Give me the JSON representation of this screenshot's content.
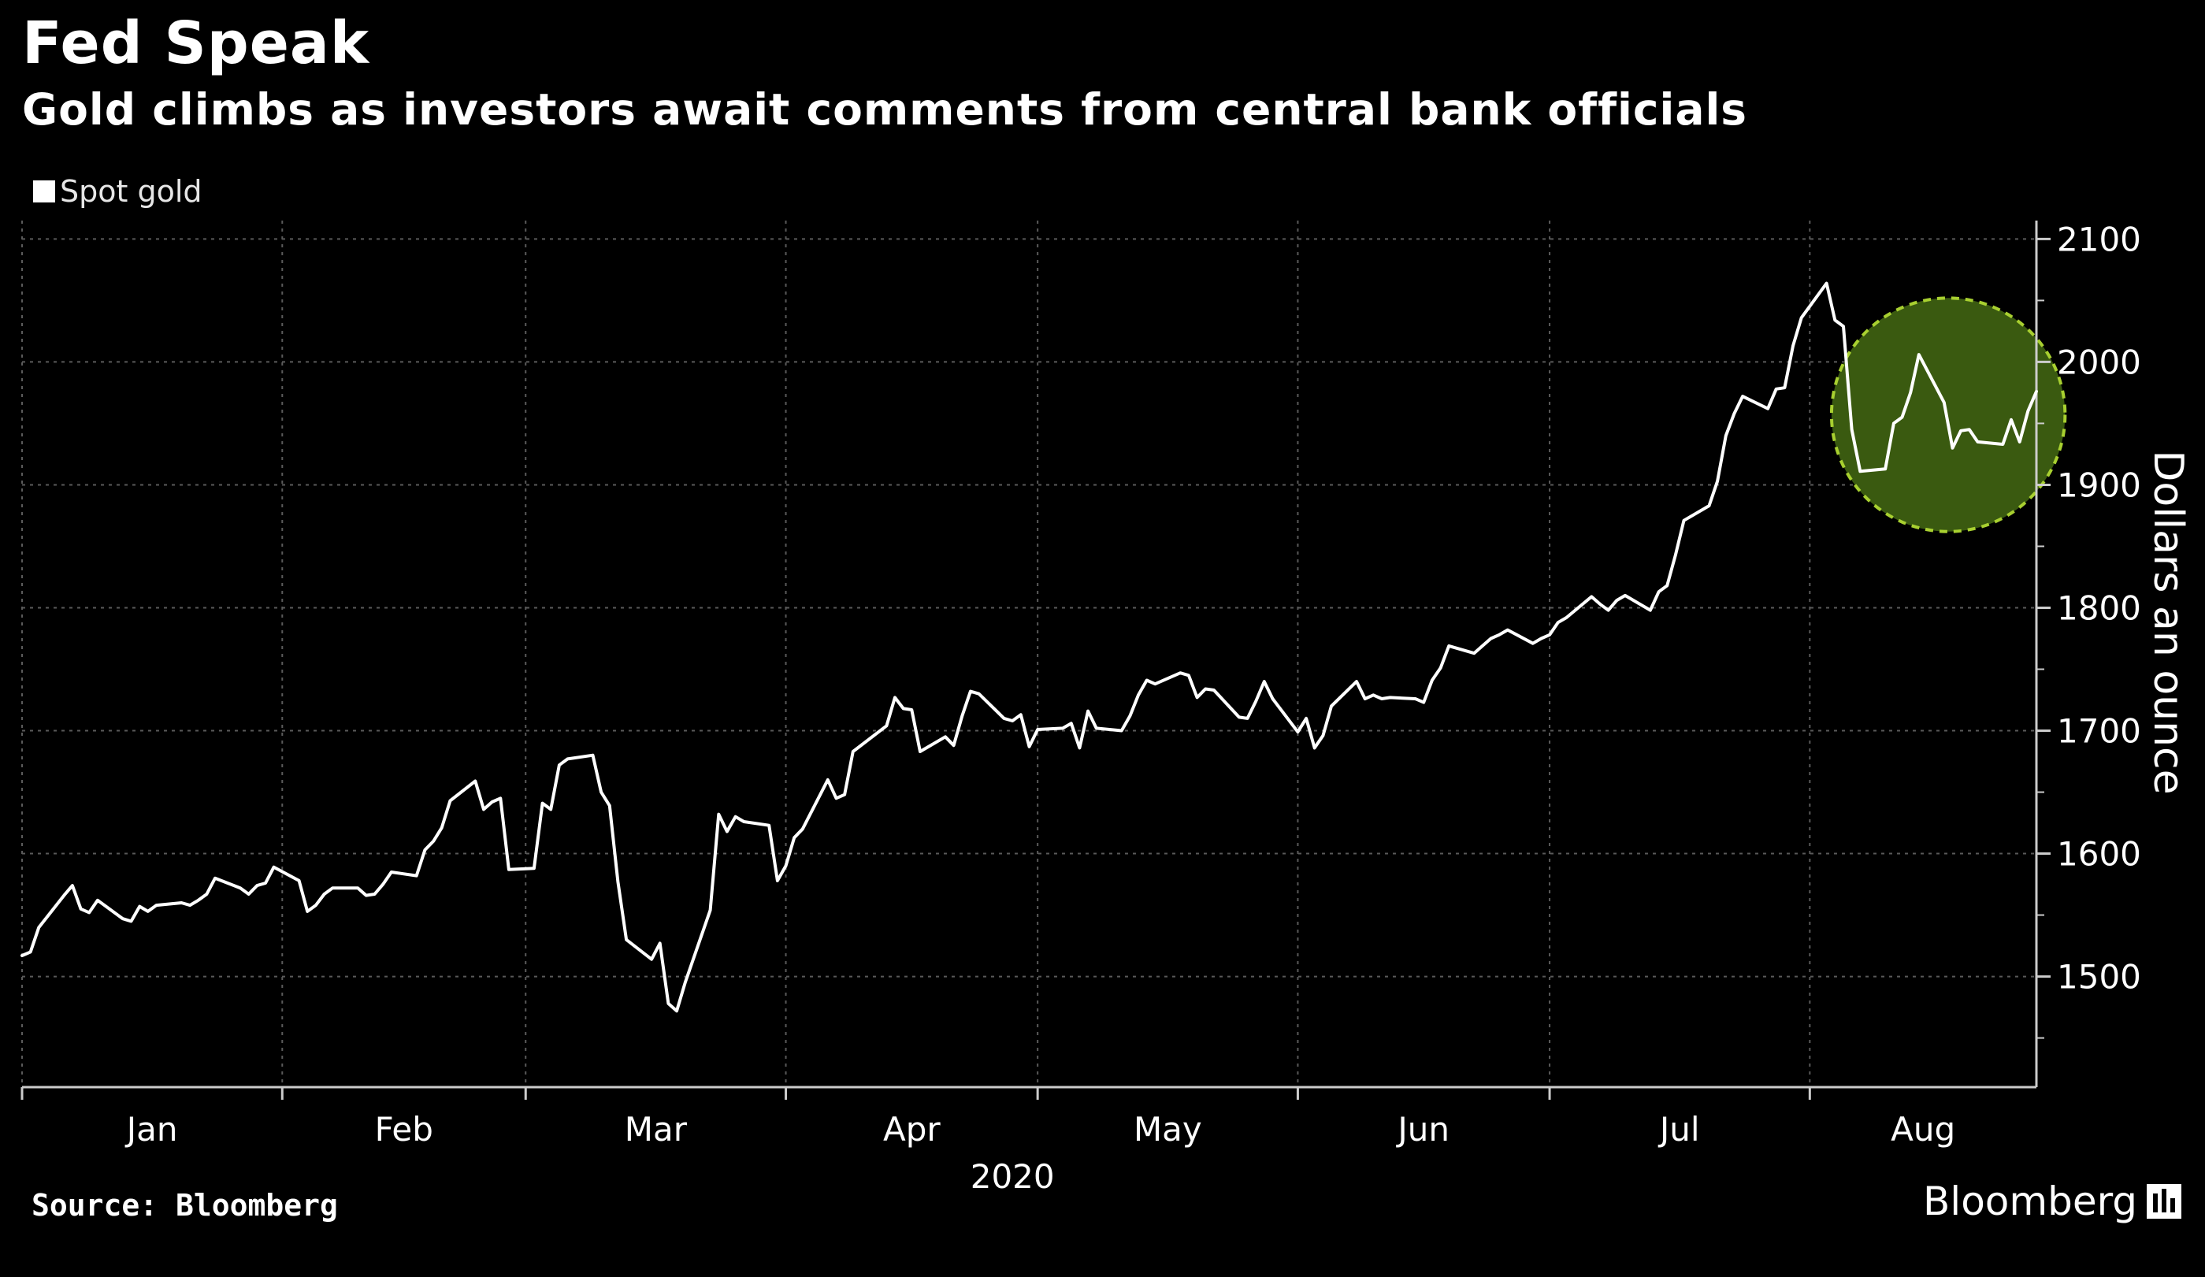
{
  "header": {
    "title": "Fed Speak",
    "subtitle": "Gold climbs as investors await comments from central bank officials"
  },
  "footer": {
    "source": "Source: Bloomberg",
    "brand": "Bloomberg"
  },
  "colors": {
    "background": "#000000",
    "line": "#ffffff",
    "grid": "#5a5a5a",
    "highlight_fill": "#3a5a10",
    "highlight_stroke": "#a8d030"
  },
  "chart_data": {
    "type": "line",
    "legend": [
      "Spot gold"
    ],
    "legend_position": "top-left",
    "ylabel": "Dollars an ounce",
    "xlabel": "2020",
    "ylim": [
      1410,
      2115
    ],
    "y_ticks": [
      1500,
      1600,
      1700,
      1800,
      1900,
      2000,
      2100
    ],
    "y_axis_side": "right",
    "x_range": [
      "2020-01-01",
      "2020-08-28"
    ],
    "x_ticks": [
      "Jan",
      "Feb",
      "Mar",
      "Apr",
      "May",
      "Jun",
      "Jul",
      "Aug"
    ],
    "month_boundaries": [
      "2020-02-01",
      "2020-03-01",
      "2020-04-01",
      "2020-05-01",
      "2020-06-01",
      "2020-07-01",
      "2020-08-01"
    ],
    "grid": true,
    "highlight": {
      "shape": "circle",
      "style": "dashed",
      "x_from": "2020-08-07",
      "x_to": "2020-08-28",
      "y_from": 1862,
      "y_to": 2052
    },
    "series": [
      {
        "name": "Spot gold",
        "x": [
          "2020-01-01",
          "2020-01-02",
          "2020-01-03",
          "2020-01-06",
          "2020-01-07",
          "2020-01-08",
          "2020-01-09",
          "2020-01-10",
          "2020-01-13",
          "2020-01-14",
          "2020-01-15",
          "2020-01-16",
          "2020-01-17",
          "2020-01-20",
          "2020-01-21",
          "2020-01-22",
          "2020-01-23",
          "2020-01-24",
          "2020-01-27",
          "2020-01-28",
          "2020-01-29",
          "2020-01-30",
          "2020-01-31",
          "2020-02-03",
          "2020-02-04",
          "2020-02-05",
          "2020-02-06",
          "2020-02-07",
          "2020-02-10",
          "2020-02-11",
          "2020-02-12",
          "2020-02-13",
          "2020-02-14",
          "2020-02-17",
          "2020-02-18",
          "2020-02-19",
          "2020-02-20",
          "2020-02-21",
          "2020-02-24",
          "2020-02-25",
          "2020-02-26",
          "2020-02-27",
          "2020-02-28",
          "2020-03-02",
          "2020-03-03",
          "2020-03-04",
          "2020-03-05",
          "2020-03-06",
          "2020-03-09",
          "2020-03-10",
          "2020-03-11",
          "2020-03-12",
          "2020-03-13",
          "2020-03-16",
          "2020-03-17",
          "2020-03-18",
          "2020-03-19",
          "2020-03-20",
          "2020-03-23",
          "2020-03-24",
          "2020-03-25",
          "2020-03-26",
          "2020-03-27",
          "2020-03-30",
          "2020-03-31",
          "2020-04-01",
          "2020-04-02",
          "2020-04-03",
          "2020-04-06",
          "2020-04-07",
          "2020-04-08",
          "2020-04-09",
          "2020-04-13",
          "2020-04-14",
          "2020-04-15",
          "2020-04-16",
          "2020-04-17",
          "2020-04-20",
          "2020-04-21",
          "2020-04-22",
          "2020-04-23",
          "2020-04-24",
          "2020-04-27",
          "2020-04-28",
          "2020-04-29",
          "2020-04-30",
          "2020-05-01",
          "2020-05-04",
          "2020-05-05",
          "2020-05-06",
          "2020-05-07",
          "2020-05-08",
          "2020-05-11",
          "2020-05-12",
          "2020-05-13",
          "2020-05-14",
          "2020-05-15",
          "2020-05-18",
          "2020-05-19",
          "2020-05-20",
          "2020-05-21",
          "2020-05-22",
          "2020-05-25",
          "2020-05-26",
          "2020-05-27",
          "2020-05-28",
          "2020-05-29",
          "2020-06-01",
          "2020-06-02",
          "2020-06-03",
          "2020-06-04",
          "2020-06-05",
          "2020-06-08",
          "2020-06-09",
          "2020-06-10",
          "2020-06-11",
          "2020-06-12",
          "2020-06-15",
          "2020-06-16",
          "2020-06-17",
          "2020-06-18",
          "2020-06-19",
          "2020-06-22",
          "2020-06-23",
          "2020-06-24",
          "2020-06-25",
          "2020-06-26",
          "2020-06-29",
          "2020-06-30",
          "2020-07-01",
          "2020-07-02",
          "2020-07-03",
          "2020-07-06",
          "2020-07-07",
          "2020-07-08",
          "2020-07-09",
          "2020-07-10",
          "2020-07-13",
          "2020-07-14",
          "2020-07-15",
          "2020-07-16",
          "2020-07-17",
          "2020-07-20",
          "2020-07-21",
          "2020-07-22",
          "2020-07-23",
          "2020-07-24",
          "2020-07-27",
          "2020-07-28",
          "2020-07-29",
          "2020-07-30",
          "2020-07-31",
          "2020-08-03",
          "2020-08-04",
          "2020-08-05",
          "2020-08-06",
          "2020-08-07",
          "2020-08-10",
          "2020-08-11",
          "2020-08-12",
          "2020-08-13",
          "2020-08-14",
          "2020-08-17",
          "2020-08-18",
          "2020-08-19",
          "2020-08-20",
          "2020-08-21",
          "2020-08-24",
          "2020-08-25",
          "2020-08-26",
          "2020-08-27",
          "2020-08-28"
        ],
        "values": [
          1517,
          1520,
          1540,
          1566,
          1574,
          1555,
          1552,
          1562,
          1547,
          1545,
          1557,
          1553,
          1558,
          1560,
          1558,
          1562,
          1567,
          1580,
          1572,
          1567,
          1574,
          1576,
          1589,
          1578,
          1553,
          1558,
          1567,
          1572,
          1572,
          1566,
          1567,
          1575,
          1585,
          1582,
          1603,
          1610,
          1621,
          1643,
          1659,
          1636,
          1642,
          1645,
          1587,
          1588,
          1641,
          1636,
          1672,
          1677,
          1680,
          1650,
          1639,
          1577,
          1530,
          1514,
          1527,
          1478,
          1472,
          1495,
          1554,
          1632,
          1618,
          1630,
          1626,
          1623,
          1578,
          1590,
          1613,
          1620,
          1660,
          1645,
          1648,
          1683,
          1704,
          1727,
          1718,
          1717,
          1683,
          1695,
          1688,
          1712,
          1732,
          1730,
          1710,
          1708,
          1713,
          1687,
          1701,
          1702,
          1706,
          1686,
          1716,
          1702,
          1700,
          1712,
          1729,
          1741,
          1738,
          1747,
          1745,
          1727,
          1734,
          1733,
          1711,
          1710,
          1724,
          1740,
          1726,
          1699,
          1710,
          1686,
          1696,
          1720,
          1740,
          1726,
          1729,
          1726,
          1727,
          1726,
          1723,
          1741,
          1751,
          1769,
          1763,
          1769,
          1775,
          1778,
          1782,
          1771,
          1775,
          1778,
          1788,
          1792,
          1809,
          1803,
          1798,
          1806,
          1810,
          1798,
          1813,
          1818,
          1843,
          1871,
          1883,
          1903,
          1940,
          1958,
          1972,
          1962,
          1978,
          1979,
          2013,
          2036,
          2064,
          2034,
          2029,
          1945,
          1911,
          1913,
          1950,
          1955,
          1975,
          2006,
          1967,
          1930,
          1944,
          1945,
          1935,
          1933,
          1953,
          1935,
          1960,
          1976
        ]
      }
    ]
  }
}
